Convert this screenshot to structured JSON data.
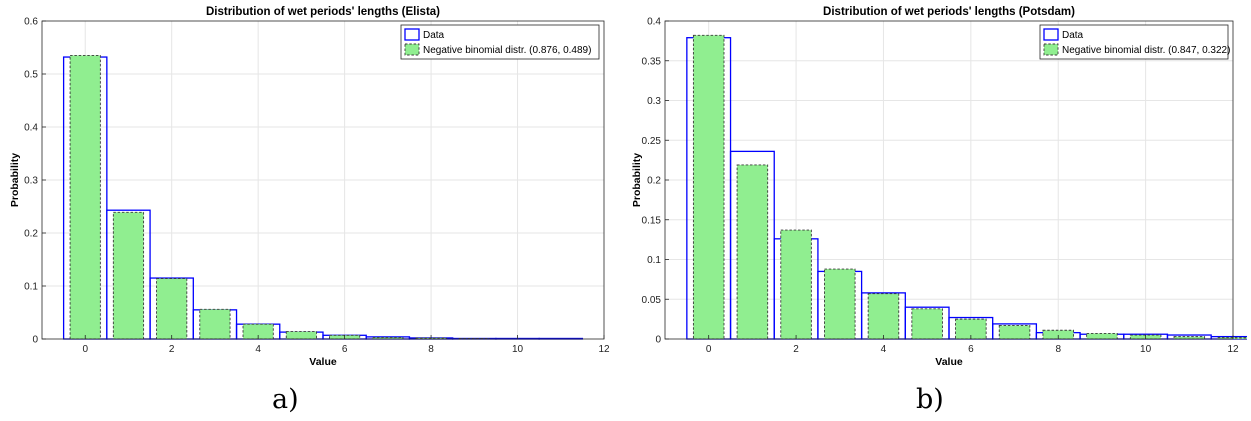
{
  "chart_data": [
    {
      "type": "bar",
      "title": "Distribution of wet periods' lengths (Elista)",
      "xlabel": "Value",
      "ylabel": "Probability",
      "xlim": [
        -1,
        12
      ],
      "ylim": [
        0,
        0.6
      ],
      "xticks": [
        0,
        2,
        4,
        6,
        8,
        10,
        12
      ],
      "yticks": [
        0,
        0.1,
        0.2,
        0.3,
        0.4,
        0.5,
        0.6
      ],
      "ytick_labels": [
        "0",
        "0.1",
        "0.2",
        "0.3",
        "0.4",
        "0.5",
        "0.6"
      ],
      "grid": true,
      "legend_position": "top-right",
      "x": [
        0,
        1,
        2,
        3,
        4,
        5,
        6,
        7,
        8,
        9,
        10,
        11
      ],
      "series": [
        {
          "name": "Data",
          "style": "outline",
          "color": "#0000ff",
          "values": [
            0.532,
            0.243,
            0.115,
            0.055,
            0.028,
            0.013,
            0.007,
            0.004,
            0.002,
            0.001,
            0.001,
            0.001
          ]
        },
        {
          "name": "Negative binomial distr. (0.876, 0.489)",
          "style": "filled-dashed",
          "color": "#90ee90",
          "values": [
            0.535,
            0.239,
            0.114,
            0.056,
            0.028,
            0.014,
            0.007,
            0.003,
            0.002,
            0.001,
            0.0,
            0.0
          ]
        }
      ]
    },
    {
      "type": "bar",
      "title": "Distribution of wet periods' lengths (Potsdam)",
      "xlabel": "Value",
      "ylabel": "Probability",
      "xlim": [
        -1,
        12
      ],
      "ylim": [
        0,
        0.4
      ],
      "xticks": [
        0,
        2,
        4,
        6,
        8,
        10,
        12
      ],
      "yticks": [
        0,
        0.05,
        0.1,
        0.15,
        0.2,
        0.25,
        0.3,
        0.35,
        0.4
      ],
      "ytick_labels": [
        "0",
        "0.05",
        "0.1",
        "0.15",
        "0.2",
        "0.25",
        "0.3",
        "0.35",
        "0.4"
      ],
      "grid": true,
      "legend_position": "top-right",
      "x": [
        0,
        1,
        2,
        3,
        4,
        5,
        6,
        7,
        8,
        9,
        10,
        11,
        12
      ],
      "series": [
        {
          "name": "Data",
          "style": "outline",
          "color": "#0000ff",
          "values": [
            0.379,
            0.236,
            0.126,
            0.085,
            0.058,
            0.04,
            0.027,
            0.019,
            0.008,
            0.006,
            0.006,
            0.005,
            0.003
          ]
        },
        {
          "name": "Negative binomial distr. (0.847, 0.322)",
          "style": "filled-dashed",
          "color": "#90ee90",
          "values": [
            0.382,
            0.219,
            0.137,
            0.088,
            0.057,
            0.038,
            0.025,
            0.017,
            0.011,
            0.007,
            0.005,
            0.003,
            0.002
          ]
        }
      ]
    }
  ],
  "captions": [
    "a)",
    "b)"
  ]
}
